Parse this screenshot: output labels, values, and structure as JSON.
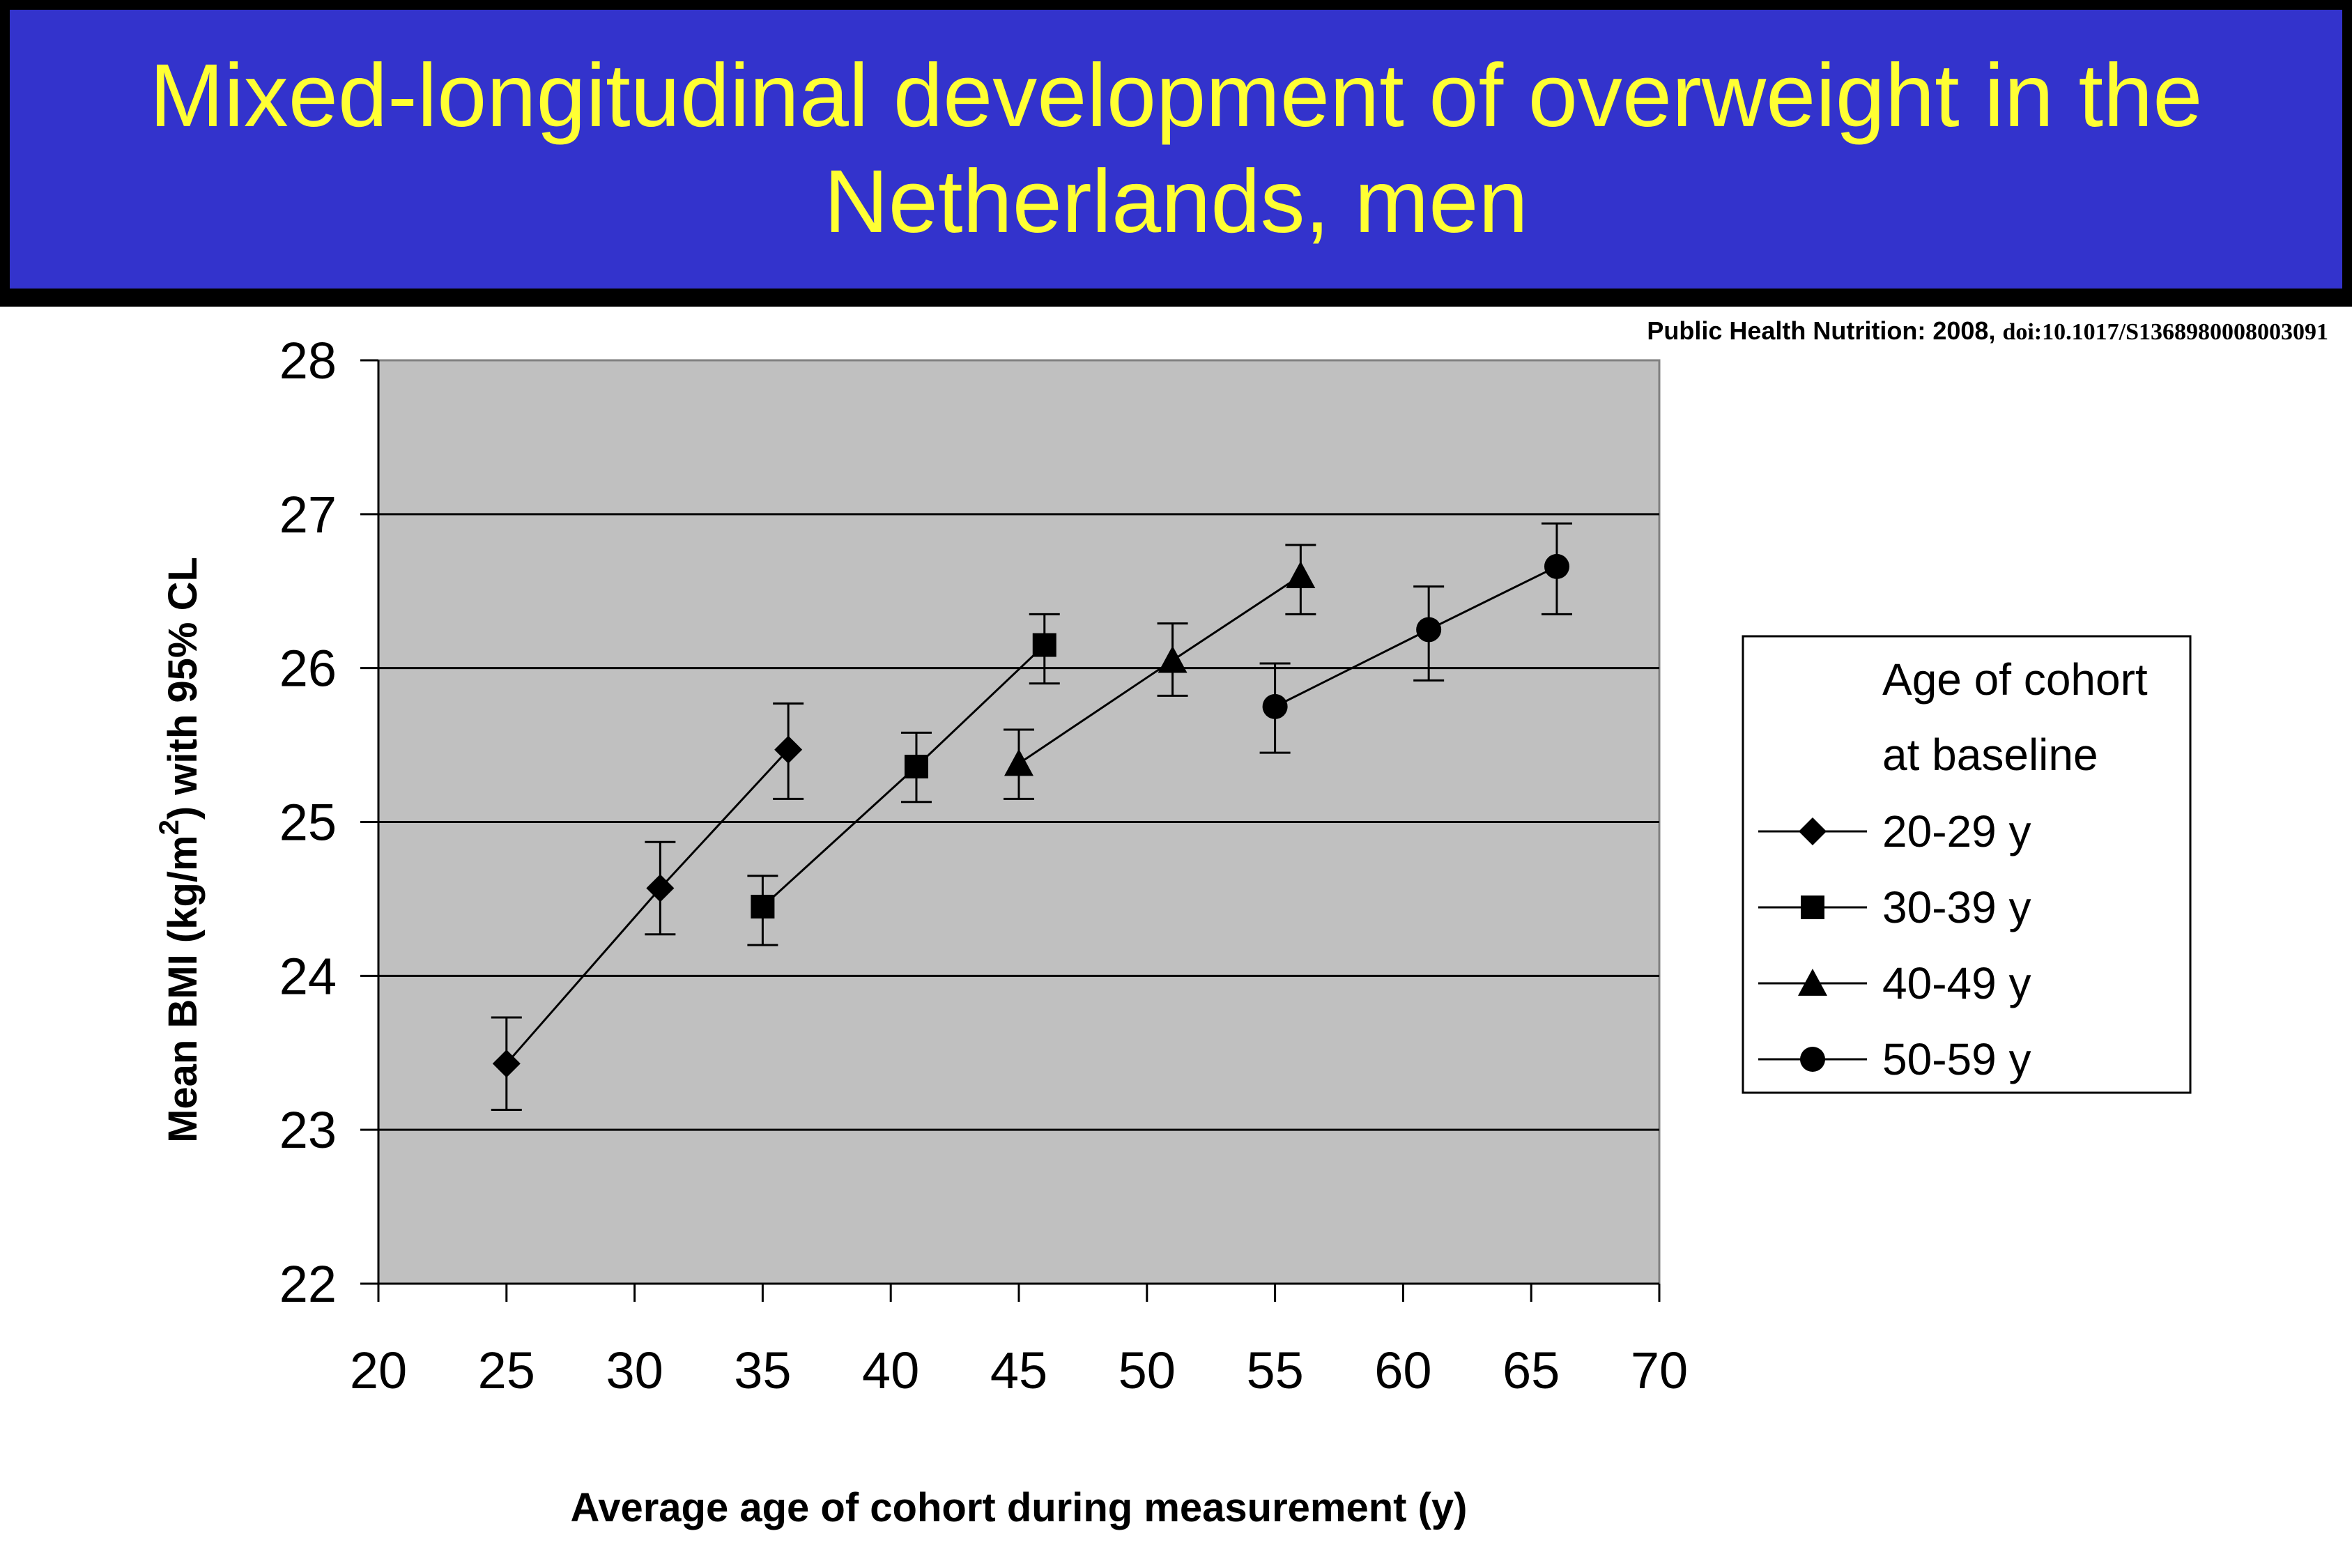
{
  "slide": {
    "title_line1": "Mixed-longitudinal development of overweight in the",
    "title_line2": "Netherlands, men",
    "citation_journal": "Public Health Nutrition: 2008, ",
    "citation_doi": "doi:10.1017/S1368980008003091"
  },
  "colors": {
    "title_background": "#3333cc",
    "title_text": "#ffff33",
    "plot_background": "#c0c0c0"
  },
  "chart_data": {
    "type": "line",
    "xlabel": "Average age of cohort during measurement (y)",
    "ylabel_main": "Mean BMI (kg/m",
    "ylabel_sup": "2",
    "ylabel_tail": ") with 95% CL",
    "xlim": [
      20,
      70
    ],
    "ylim": [
      22,
      28
    ],
    "x_ticks": [
      "20",
      "25",
      "30",
      "35",
      "40",
      "45",
      "50",
      "55",
      "60",
      "65",
      "70"
    ],
    "y_ticks": [
      "22",
      "23",
      "24",
      "25",
      "26",
      "27",
      "28"
    ],
    "gridlines": "horizontal",
    "legend": {
      "title_line1": "Age of cohort",
      "title_line2": "at baseline",
      "placement": "right"
    },
    "series": [
      {
        "name": "20-29 y",
        "marker": "diamond",
        "points": [
          {
            "x": 25,
            "y": 23.43,
            "lo": 23.13,
            "hi": 23.73
          },
          {
            "x": 31,
            "y": 24.57,
            "lo": 24.27,
            "hi": 24.87
          },
          {
            "x": 36,
            "y": 25.47,
            "lo": 25.15,
            "hi": 25.77
          }
        ]
      },
      {
        "name": "30-39 y",
        "marker": "square",
        "points": [
          {
            "x": 35,
            "y": 24.45,
            "lo": 24.2,
            "hi": 24.65
          },
          {
            "x": 41,
            "y": 25.36,
            "lo": 25.13,
            "hi": 25.58
          },
          {
            "x": 46,
            "y": 26.15,
            "lo": 25.9,
            "hi": 26.35
          }
        ]
      },
      {
        "name": "40-49 y",
        "marker": "triangle",
        "points": [
          {
            "x": 45,
            "y": 25.38,
            "lo": 25.15,
            "hi": 25.6
          },
          {
            "x": 51,
            "y": 26.05,
            "lo": 25.82,
            "hi": 26.29
          },
          {
            "x": 56,
            "y": 26.6,
            "lo": 26.35,
            "hi": 26.8
          }
        ]
      },
      {
        "name": "50-59 y",
        "marker": "circle",
        "points": [
          {
            "x": 55,
            "y": 25.75,
            "lo": 25.45,
            "hi": 26.03
          },
          {
            "x": 61,
            "y": 26.25,
            "lo": 25.92,
            "hi": 26.53
          },
          {
            "x": 66,
            "y": 26.66,
            "lo": 26.35,
            "hi": 26.94
          }
        ]
      }
    ]
  }
}
